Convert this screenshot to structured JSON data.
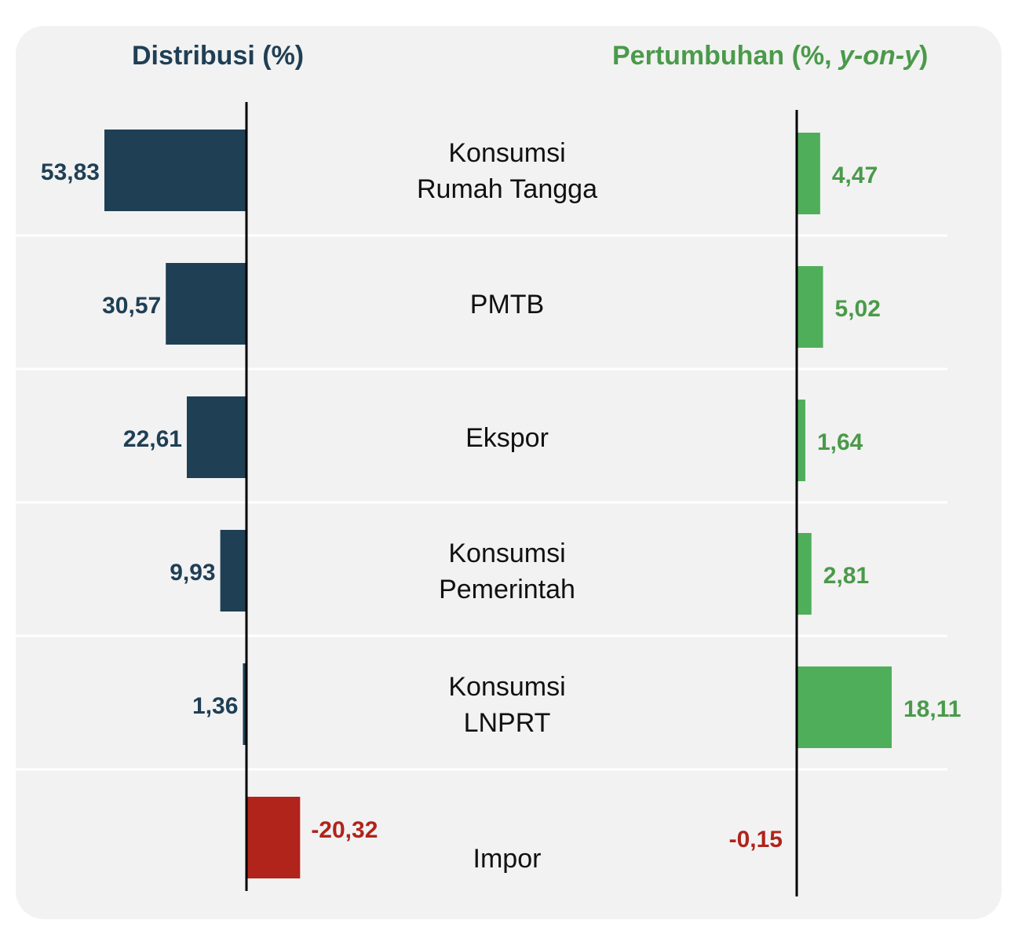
{
  "headings": {
    "left": "Distribusi (%)",
    "right_prefix": "Pertumbuhan (%, ",
    "right_italic": "y-on-y",
    "right_suffix": ")"
  },
  "colors": {
    "distribution": "#1f3f55",
    "growth": "#4fae5a",
    "negative": "#b0241b",
    "growth_text": "#4a9a4a"
  },
  "chart_data": [
    {
      "type": "bar",
      "orientation": "horizontal",
      "title": "Distribusi (%)",
      "categories": [
        "Konsumsi Rumah Tangga",
        "PMTB",
        "Ekspor",
        "Konsumsi Pemerintah",
        "Konsumsi LNPRT",
        "Impor"
      ],
      "values": [
        53.83,
        30.57,
        22.61,
        9.93,
        1.36,
        -20.32
      ],
      "value_labels": [
        "53,83",
        "30,57",
        "22,61",
        "9,93",
        "1,36",
        "-20,32"
      ],
      "direction": "positive values extend left of axis, negative to the right"
    },
    {
      "type": "bar",
      "orientation": "horizontal",
      "title": "Pertumbuhan (%, y-on-y)",
      "categories": [
        "Konsumsi Rumah Tangga",
        "PMTB",
        "Ekspor",
        "Konsumsi Pemerintah",
        "Konsumsi LNPRT",
        "Impor"
      ],
      "values": [
        4.47,
        5.02,
        1.64,
        2.81,
        18.11,
        -0.15
      ],
      "value_labels": [
        "4,47",
        "5,02",
        "1,64",
        "2,81",
        "18,11",
        "-0,15"
      ]
    }
  ],
  "category_labels": [
    [
      "Konsumsi",
      "Rumah Tangga"
    ],
    [
      "PMTB"
    ],
    [
      "Ekspor"
    ],
    [
      "Konsumsi",
      "Pemerintah"
    ],
    [
      "Konsumsi",
      "LNPRT"
    ],
    [
      "Impor"
    ]
  ]
}
